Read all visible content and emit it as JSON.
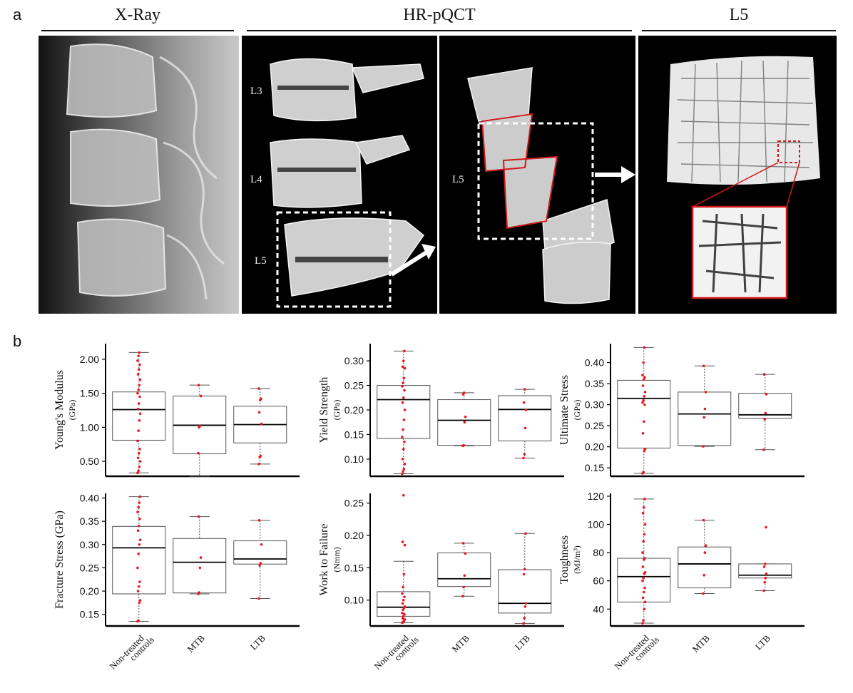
{
  "panel_a": {
    "letter": "a",
    "sections": [
      "X-Ray",
      "HR-pQCT",
      "L5"
    ],
    "vertebra_labels": {
      "l3": "L3",
      "l4": "L4",
      "l5": "L5",
      "l5_cut": "L5"
    }
  },
  "panel_b": {
    "letter": "b"
  },
  "colors": {
    "points": "#e8191d",
    "box": "#555555",
    "median": "#000000",
    "axis": "#000000",
    "highlight": "#d01818"
  },
  "chart_data": [
    {
      "type": "box",
      "ylabel": "Young's Modulus",
      "yunit": "(GPa)",
      "yticks": [
        0.5,
        1.0,
        1.5,
        2.0
      ],
      "tick_labels": [
        "0.50",
        "1.00",
        "1.50",
        "2.00"
      ],
      "ylim": [
        0.28,
        2.23
      ],
      "categories": [
        "Non-treated controls",
        "MTB",
        "LTB"
      ],
      "boxes": [
        {
          "min": 0.33,
          "q1": 0.81,
          "median": 1.26,
          "q3": 1.52,
          "max": 2.1
        },
        {
          "min": 0.28,
          "q1": 0.61,
          "median": 1.03,
          "q3": 1.46,
          "max": 1.62
        },
        {
          "min": 0.46,
          "q1": 0.77,
          "median": 1.04,
          "q3": 1.31,
          "max": 1.57
        }
      ],
      "points": [
        [
          0.33,
          0.36,
          0.42,
          0.5,
          0.55,
          0.62,
          0.68,
          0.8,
          0.95,
          1.1,
          1.2,
          1.27,
          1.35,
          1.45,
          1.5,
          1.55,
          1.62,
          1.7,
          1.78,
          1.85,
          1.92,
          1.98,
          2.05,
          2.1
        ],
        [
          0.62,
          1.0,
          1.02,
          1.46,
          1.62
        ],
        [
          0.46,
          0.56,
          0.58,
          1.05,
          1.22,
          1.4,
          1.42,
          1.57
        ]
      ]
    },
    {
      "type": "box",
      "ylabel": "Yield Strength",
      "yunit": "(GPa)",
      "yticks": [
        0.1,
        0.15,
        0.2,
        0.25,
        0.3
      ],
      "tick_labels": [
        "0.10",
        "0.15",
        "0.20",
        "0.25",
        "0.30"
      ],
      "ylim": [
        0.065,
        0.335
      ],
      "categories": [
        "Non-treated controls",
        "MTB",
        "LTB"
      ],
      "boxes": [
        {
          "min": 0.07,
          "q1": 0.142,
          "median": 0.221,
          "q3": 0.25,
          "max": 0.32
        },
        {
          "min": 0.127,
          "q1": 0.128,
          "median": 0.179,
          "q3": 0.221,
          "max": 0.235
        },
        {
          "min": 0.102,
          "q1": 0.137,
          "median": 0.201,
          "q3": 0.229,
          "max": 0.242
        }
      ],
      "points": [
        [
          0.07,
          0.075,
          0.08,
          0.09,
          0.1,
          0.12,
          0.135,
          0.145,
          0.16,
          0.18,
          0.2,
          0.215,
          0.225,
          0.24,
          0.248,
          0.255,
          0.265,
          0.285,
          0.288,
          0.3,
          0.32
        ],
        [
          0.127,
          0.128,
          0.175,
          0.186,
          0.232,
          0.235
        ],
        [
          0.102,
          0.11,
          0.163,
          0.2,
          0.215,
          0.242
        ]
      ]
    },
    {
      "type": "box",
      "ylabel": "Ultimate Stress",
      "yunit": "(GPa)",
      "yticks": [
        0.15,
        0.2,
        0.25,
        0.3,
        0.35,
        0.4
      ],
      "tick_labels": [
        "0.15",
        "0.20",
        "0.25",
        "0.30",
        "0.35",
        "0.40"
      ],
      "ylim": [
        0.13,
        0.445
      ],
      "categories": [
        "Non-treated controls",
        "MTB",
        "LTB"
      ],
      "boxes": [
        {
          "min": 0.137,
          "q1": 0.197,
          "median": 0.315,
          "q3": 0.358,
          "max": 0.436
        },
        {
          "min": 0.201,
          "q1": 0.203,
          "median": 0.278,
          "q3": 0.33,
          "max": 0.392
        },
        {
          "min": 0.193,
          "q1": 0.268,
          "median": 0.276,
          "q3": 0.327,
          "max": 0.372
        }
      ],
      "points": [
        [
          0.137,
          0.14,
          0.19,
          0.195,
          0.232,
          0.26,
          0.3,
          0.305,
          0.31,
          0.32,
          0.33,
          0.345,
          0.36,
          0.365,
          0.37,
          0.4,
          0.436
        ],
        [
          0.201,
          0.27,
          0.29,
          0.33,
          0.392
        ],
        [
          0.193,
          0.265,
          0.28,
          0.325,
          0.372
        ]
      ]
    },
    {
      "type": "box",
      "ylabel": "Fracture Stress (GPa)",
      "yunit": "",
      "yticks": [
        0.15,
        0.2,
        0.25,
        0.3,
        0.35,
        0.4
      ],
      "tick_labels": [
        "0.15",
        "0.20",
        "0.25",
        "0.30",
        "0.35",
        "0.40"
      ],
      "ylim": [
        0.125,
        0.41
      ],
      "categories": [
        "Non-treated controls",
        "MTB",
        "LTB"
      ],
      "boxes": [
        {
          "min": 0.135,
          "q1": 0.194,
          "median": 0.293,
          "q3": 0.339,
          "max": 0.403
        },
        {
          "min": 0.194,
          "q1": 0.196,
          "median": 0.262,
          "q3": 0.313,
          "max": 0.36
        },
        {
          "min": 0.184,
          "q1": 0.258,
          "median": 0.269,
          "q3": 0.308,
          "max": 0.352
        }
      ],
      "points": [
        [
          0.135,
          0.137,
          0.175,
          0.18,
          0.2,
          0.21,
          0.22,
          0.25,
          0.28,
          0.3,
          0.31,
          0.33,
          0.34,
          0.355,
          0.37,
          0.38,
          0.39,
          0.403
        ],
        [
          0.194,
          0.197,
          0.25,
          0.272,
          0.36
        ],
        [
          0.184,
          0.255,
          0.26,
          0.3,
          0.352
        ]
      ]
    },
    {
      "type": "box",
      "ylabel": "Work to Failure",
      "yunit": "(Nmm)",
      "yticks": [
        0.1,
        0.15,
        0.2,
        0.25
      ],
      "tick_labels": [
        "0.10",
        "0.15",
        "0.20",
        "0.25"
      ],
      "ylim": [
        0.06,
        0.265
      ],
      "categories": [
        "Non-treated controls",
        "MTB",
        "LTB"
      ],
      "boxes": [
        {
          "min": 0.065,
          "q1": 0.075,
          "median": 0.089,
          "q3": 0.113,
          "max": 0.16
        },
        {
          "min": 0.106,
          "q1": 0.121,
          "median": 0.133,
          "q3": 0.173,
          "max": 0.188
        },
        {
          "min": 0.064,
          "q1": 0.08,
          "median": 0.095,
          "q3": 0.147,
          "max": 0.203
        }
      ],
      "points": [
        [
          0.065,
          0.066,
          0.068,
          0.07,
          0.072,
          0.075,
          0.078,
          0.08,
          0.085,
          0.088,
          0.09,
          0.095,
          0.1,
          0.105,
          0.11,
          0.12,
          0.14,
          0.185,
          0.19,
          0.262
        ],
        [
          0.106,
          0.12,
          0.138,
          0.172,
          0.188
        ],
        [
          0.064,
          0.072,
          0.09,
          0.095,
          0.14,
          0.148,
          0.203
        ]
      ]
    },
    {
      "type": "box",
      "ylabel": "Toughness",
      "yunit": "(MJ/m³)",
      "yticks": [
        40,
        60,
        80,
        100,
        120
      ],
      "tick_labels": [
        "40",
        "60",
        "80",
        "100",
        "120"
      ],
      "ylim": [
        28,
        122
      ],
      "categories": [
        "Non-treated controls",
        "MTB",
        "LTB"
      ],
      "boxes": [
        {
          "min": 30,
          "q1": 45,
          "median": 63,
          "q3": 76,
          "max": 118
        },
        {
          "min": 51,
          "q1": 55,
          "median": 72,
          "q3": 84,
          "max": 103
        },
        {
          "min": 53,
          "q1": 62,
          "median": 64,
          "q3": 72,
          "max": 72
        }
      ],
      "points": [
        [
          30,
          32,
          40,
          45,
          48,
          52,
          55,
          60,
          62,
          65,
          66,
          70,
          75,
          76,
          80,
          88,
          93,
          100,
          108,
          112,
          118
        ],
        [
          51,
          64,
          80,
          85,
          103
        ],
        [
          53,
          59,
          62,
          65,
          70,
          72,
          98
        ]
      ]
    }
  ]
}
